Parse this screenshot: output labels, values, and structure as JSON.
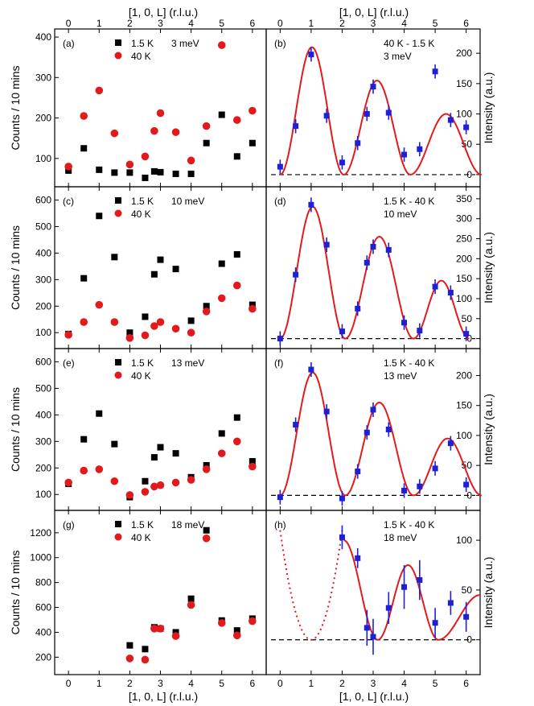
{
  "figure": {
    "x_axis_label": "[1, 0, L] (r.l.u.)",
    "left_y_label": "Counts / 10 mins",
    "right_y_label": "Intensity (a.u.)"
  },
  "colors": {
    "series_a": "#000000",
    "series_b": "#e31a1c",
    "diff": "#1f1fd6",
    "fit": "#e31a1c"
  },
  "chart_data": [
    {
      "type": "scatter",
      "panel": "(a)",
      "energy": "3 meV",
      "ylim": [
        30,
        420
      ],
      "yticks": [
        100,
        200,
        300,
        400
      ],
      "x": [
        0,
        0.5,
        1,
        1.5,
        2,
        2.5,
        2.8,
        3,
        3.5,
        4,
        4.5,
        5,
        5.5,
        6
      ],
      "series": [
        {
          "name": "1.5 K",
          "marker": "square",
          "values": [
            70,
            125,
            72,
            65,
            65,
            52,
            68,
            66,
            62,
            62,
            138,
            208,
            105,
            138
          ]
        },
        {
          "name": "40 K",
          "marker": "circle",
          "values": [
            80,
            205,
            268,
            162,
            85,
            105,
            168,
            212,
            165,
            95,
            180,
            380,
            195,
            218
          ]
        }
      ]
    },
    {
      "type": "line",
      "panel": "(b)",
      "label1": "40 K - 1.5 K",
      "energy": "3 meV",
      "ylim": [
        -20,
        240
      ],
      "yticks": [
        0,
        50,
        100,
        150,
        200
      ],
      "baseline": 0,
      "points": {
        "x": [
          0,
          0.5,
          1,
          1.5,
          2,
          2.5,
          2.8,
          3,
          3.5,
          4,
          4.5,
          5,
          5.5,
          6
        ],
        "y": [
          13,
          80,
          198,
          97,
          20,
          52,
          100,
          145,
          102,
          33,
          42,
          170,
          90,
          78
        ]
      },
      "fit": {
        "peaks": [
          1,
          3.1,
          5.3
        ],
        "amps": [
          210,
          155,
          100
        ],
        "zeros": [
          0,
          2.05,
          4.2,
          6.5
        ]
      }
    },
    {
      "type": "scatter",
      "panel": "(c)",
      "energy": "10 meV",
      "ylim": [
        40,
        650
      ],
      "yticks": [
        100,
        200,
        300,
        400,
        500,
        600
      ],
      "x": [
        0,
        0.5,
        1,
        1.5,
        2,
        2.5,
        2.8,
        3,
        3.5,
        4,
        4.5,
        5,
        5.5,
        6
      ],
      "series": [
        {
          "name": "1.5 K",
          "marker": "square",
          "values": [
            95,
            305,
            540,
            385,
            100,
            160,
            320,
            375,
            340,
            145,
            200,
            360,
            395,
            205
          ]
        },
        {
          "name": "40 K",
          "marker": "circle",
          "values": [
            92,
            140,
            205,
            140,
            80,
            90,
            125,
            140,
            115,
            100,
            180,
            230,
            278,
            190
          ]
        }
      ]
    },
    {
      "type": "line",
      "panel": "(d)",
      "label1": "1.5 K - 40 K",
      "energy": "10 meV",
      "ylim": [
        -25,
        380
      ],
      "yticks": [
        0,
        50,
        100,
        150,
        200,
        250,
        300,
        350
      ],
      "baseline": 0,
      "points": {
        "x": [
          0,
          0.5,
          1,
          1.5,
          2,
          2.5,
          2.8,
          3,
          3.5,
          4,
          4.5,
          5,
          5.5,
          6
        ],
        "y": [
          0,
          160,
          335,
          235,
          18,
          75,
          190,
          230,
          222,
          40,
          20,
          130,
          115,
          12
        ]
      },
      "fit": {
        "peaks": [
          1,
          3.05,
          5.3
        ],
        "amps": [
          330,
          255,
          145
        ],
        "zeros": [
          0,
          2.1,
          4.3,
          6.1
        ]
      }
    },
    {
      "type": "scatter",
      "panel": "(e)",
      "energy": "13 meV",
      "ylim": [
        40,
        650
      ],
      "yticks": [
        100,
        200,
        300,
        400,
        500,
        600
      ],
      "x": [
        0,
        0.5,
        1,
        1.5,
        2,
        2.5,
        2.8,
        3,
        3.5,
        4,
        4.5,
        5,
        5.5,
        6
      ],
      "series": [
        {
          "name": "1.5 K",
          "marker": "square",
          "values": [
            140,
            308,
            405,
            290,
            90,
            150,
            240,
            278,
            255,
            165,
            210,
            330,
            390,
            225
          ]
        },
        {
          "name": "40 K",
          "marker": "circle",
          "values": [
            145,
            190,
            195,
            150,
            98,
            110,
            130,
            135,
            145,
            155,
            195,
            255,
            300,
            205
          ]
        }
      ]
    },
    {
      "type": "line",
      "panel": "(f)",
      "label1": "1.5 K - 40 K",
      "energy": "13 meV",
      "ylim": [
        -25,
        245
      ],
      "yticks": [
        0,
        50,
        100,
        150,
        200
      ],
      "baseline": 0,
      "points": {
        "x": [
          0,
          0.5,
          1,
          1.5,
          2,
          2.5,
          2.8,
          3,
          3.5,
          4,
          4.5,
          5,
          5.5,
          6
        ],
        "y": [
          -3,
          118,
          210,
          140,
          -5,
          40,
          105,
          143,
          110,
          8,
          15,
          45,
          87,
          18
        ]
      },
      "fit": {
        "peaks": [
          1,
          3.1,
          5.3
        ],
        "amps": [
          205,
          155,
          95
        ],
        "zeros": [
          0,
          2.1,
          4.3,
          6.5
        ]
      }
    },
    {
      "type": "scatter",
      "panel": "(g)",
      "energy": "18 meV",
      "ylim": [
        60,
        1380
      ],
      "yticks": [
        200,
        400,
        600,
        800,
        1000,
        1200
      ],
      "x": [
        2,
        2.5,
        2.8,
        3,
        3.5,
        4,
        4.5,
        5,
        5.5,
        6
      ],
      "series": [
        {
          "name": "1.5 K",
          "marker": "square",
          "values": [
            295,
            265,
            440,
            430,
            400,
            670,
            1220,
            495,
            415,
            510
          ]
        },
        {
          "name": "40 K",
          "marker": "circle",
          "values": [
            190,
            180,
            430,
            430,
            370,
            620,
            1155,
            475,
            375,
            490
          ]
        }
      ]
    },
    {
      "type": "line",
      "panel": "(h)",
      "label1": "1.5 K - 40 K",
      "energy": "18 meV",
      "ylim": [
        -35,
        130
      ],
      "yticks": [
        0,
        50,
        100
      ],
      "baseline": 0,
      "points": {
        "x": [
          2,
          2.5,
          2.8,
          3,
          3.5,
          4,
          4.5,
          5,
          5.5,
          6
        ],
        "y": [
          103,
          82,
          12,
          3,
          32,
          53,
          60,
          17,
          37,
          23
        ],
        "err": [
          12,
          10,
          18,
          18,
          16,
          22,
          20,
          15,
          12,
          15
        ]
      },
      "fit": {
        "dotted": true
      }
    }
  ],
  "x_ticks": [
    0,
    1,
    2,
    3,
    4,
    5,
    6
  ]
}
